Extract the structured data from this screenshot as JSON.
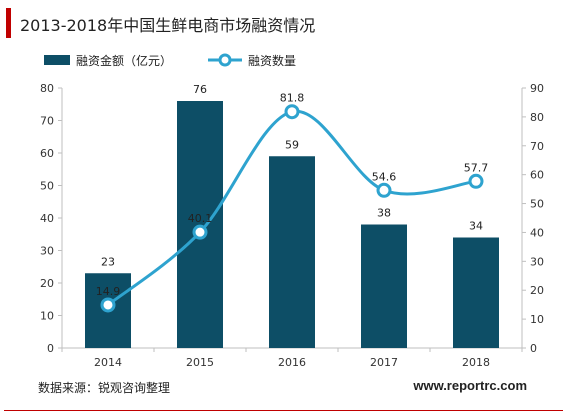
{
  "title": "2013-2018年中国生鲜电商市场融资情况",
  "footer": {
    "source": "数据来源：锐观咨询整理",
    "site": "www.reportrc.com"
  },
  "colors": {
    "bar": "#0d4e66",
    "line": "#2ea3cf",
    "accent": "#c00000"
  },
  "chart_data": {
    "type": "bar",
    "categories": [
      "2014",
      "2015",
      "2016",
      "2017",
      "2018"
    ],
    "series": [
      {
        "name": "融资金额（亿元）",
        "type": "bar",
        "axis": "left",
        "values": [
          23,
          76,
          59,
          38,
          34
        ],
        "labels": [
          "23",
          "76",
          "59",
          "38",
          "34"
        ]
      },
      {
        "name": "融资数量",
        "type": "line",
        "axis": "right",
        "values": [
          14.9,
          40.1,
          81.8,
          54.6,
          57.7
        ],
        "labels": [
          "14.9",
          "40.1",
          "81.8",
          "54.6",
          "57.7"
        ]
      }
    ],
    "y_left": {
      "min": 0,
      "max": 80,
      "ticks": [
        "0",
        "10",
        "20",
        "30",
        "40",
        "50",
        "60",
        "70",
        "80"
      ]
    },
    "y_right": {
      "min": 0,
      "max": 90,
      "ticks": [
        "0",
        "10",
        "20",
        "30",
        "40",
        "50",
        "60",
        "70",
        "80",
        "90"
      ]
    },
    "legend": "top-left",
    "grid": false
  }
}
